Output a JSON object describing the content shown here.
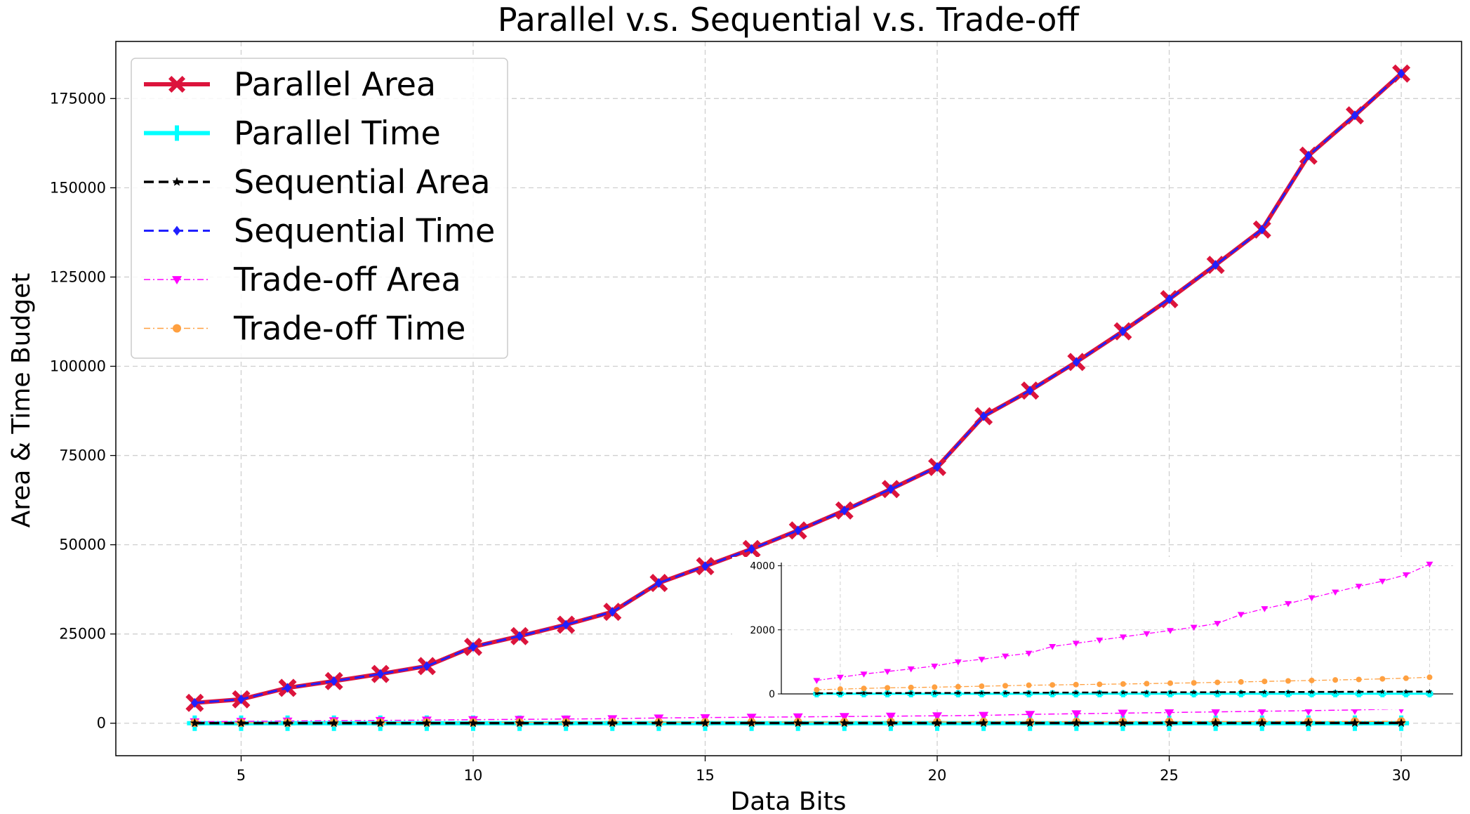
{
  "chart_data": {
    "type": "line",
    "title": "Parallel v.s. Sequential v.s. Trade-off",
    "xlabel": "Data Bits",
    "ylabel": "Area & Time Budget",
    "xlim": [
      2.3,
      31.3
    ],
    "ylim": [
      -9100,
      191000
    ],
    "xticks": [
      5,
      10,
      15,
      20,
      25,
      30
    ],
    "yticks": [
      0,
      25000,
      50000,
      75000,
      100000,
      125000,
      150000,
      175000
    ],
    "grid": true,
    "legend_position": "top-left",
    "x": [
      4,
      5,
      6,
      7,
      8,
      9,
      10,
      11,
      12,
      13,
      14,
      15,
      16,
      17,
      18,
      19,
      20,
      21,
      22,
      23,
      24,
      25,
      26,
      27,
      28,
      29,
      30
    ],
    "series": [
      {
        "name": "Parallel Area",
        "color": "#dc143c",
        "marker": "X",
        "linestyle": "solid",
        "values": [
          5700,
          6700,
          9900,
          11800,
          13800,
          16000,
          21400,
          24400,
          27600,
          31200,
          39300,
          44000,
          48800,
          54000,
          59600,
          65600,
          71800,
          86000,
          93200,
          101200,
          109800,
          118800,
          128400,
          138300,
          159000,
          170300,
          182000
        ]
      },
      {
        "name": "Parallel Time",
        "color": "#00ffff",
        "marker": "plus",
        "linestyle": "solid",
        "values": [
          3,
          3,
          3,
          3,
          4,
          4,
          4,
          4,
          4,
          4,
          4,
          4,
          5,
          5,
          5,
          5,
          5,
          5,
          5,
          5,
          5,
          5,
          5,
          5,
          5,
          5,
          5
        ]
      },
      {
        "name": "Sequential Area",
        "color": "#000000",
        "marker": "star",
        "linestyle": "dashed",
        "values": [
          20,
          22,
          24,
          26,
          28,
          30,
          32,
          34,
          36,
          38,
          40,
          42,
          44,
          46,
          48,
          50,
          52,
          54,
          56,
          58,
          60,
          62,
          64,
          66,
          68,
          70,
          72
        ]
      },
      {
        "name": "Sequential Time",
        "color": "#2020ff",
        "marker": "diamond",
        "linestyle": "dashed",
        "values": [
          5700,
          6700,
          9900,
          11800,
          13800,
          16000,
          21400,
          24400,
          27600,
          31200,
          39300,
          44000,
          48800,
          54000,
          59600,
          65600,
          71800,
          86000,
          93200,
          101200,
          109800,
          118800,
          128400,
          138300,
          159000,
          170300,
          182000
        ]
      },
      {
        "name": "Trade-off Area",
        "color": "#ff00ff",
        "marker": "triangle-down",
        "linestyle": "dashdot",
        "values": [
          420,
          520,
          620,
          700,
          780,
          870,
          1000,
          1080,
          1180,
          1270,
          1480,
          1580,
          1680,
          1780,
          1880,
          1980,
          2080,
          2200,
          2480,
          2660,
          2820,
          3000,
          3180,
          3360,
          3520,
          3720,
          4050
        ]
      },
      {
        "name": "Trade-off Time",
        "color": "#ffa040",
        "marker": "circle",
        "linestyle": "dashdot",
        "values": [
          130,
          150,
          170,
          190,
          200,
          210,
          225,
          240,
          255,
          270,
          280,
          290,
          300,
          310,
          320,
          335,
          345,
          360,
          375,
          390,
          405,
          420,
          435,
          450,
          470,
          490,
          520
        ]
      }
    ],
    "inset": {
      "ylim": [
        0,
        4100
      ],
      "yticks": [
        0,
        2000,
        4000
      ]
    }
  }
}
